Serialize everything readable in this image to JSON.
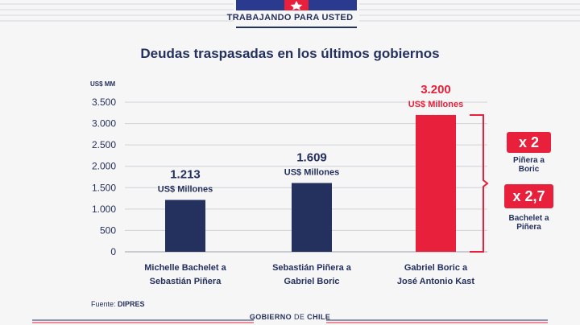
{
  "header": {
    "title": "TRABAJANDO PARA USTED"
  },
  "colors": {
    "navy": "#24305e",
    "red": "#e8203b"
  },
  "chart_data": {
    "type": "bar",
    "title": "Deudas traspasadas en los últimos gobiernos",
    "ylabel": "US$ MM",
    "ylim": [
      0,
      3500
    ],
    "yticks": [
      0,
      500,
      1000,
      1500,
      2000,
      2500,
      3000,
      3500
    ],
    "ytick_labels": [
      "0",
      "500",
      "1.000",
      "1.500",
      "2.000",
      "2.500",
      "3.000",
      "3.500"
    ],
    "categories": [
      [
        "Michelle Bachelet a",
        "Sebastián Piñera"
      ],
      [
        "Sebastián Piñera a",
        "Gabriel Boric"
      ],
      [
        "Gabriel Boric a",
        "José Antonio Kast"
      ]
    ],
    "values": [
      1213,
      1609,
      3200
    ],
    "value_labels": [
      "1.213",
      "1.609",
      "3.200"
    ],
    "value_unit": "US$ Millones",
    "bar_colors": [
      "#24305e",
      "#24305e",
      "#e8203b"
    ],
    "grid": true
  },
  "annotations": [
    {
      "badge": "x 2",
      "caption": [
        "Piñera a",
        "Boric"
      ]
    },
    {
      "badge": "x 2,7",
      "caption": [
        "Bachelet a",
        "Piñera"
      ]
    }
  ],
  "source": {
    "prefix": "Fuente:",
    "name": "DIPRES"
  },
  "footer": {
    "brand_bold": "GOBIERNO",
    "brand_light": "DE",
    "brand_bold2": "CHILE"
  }
}
